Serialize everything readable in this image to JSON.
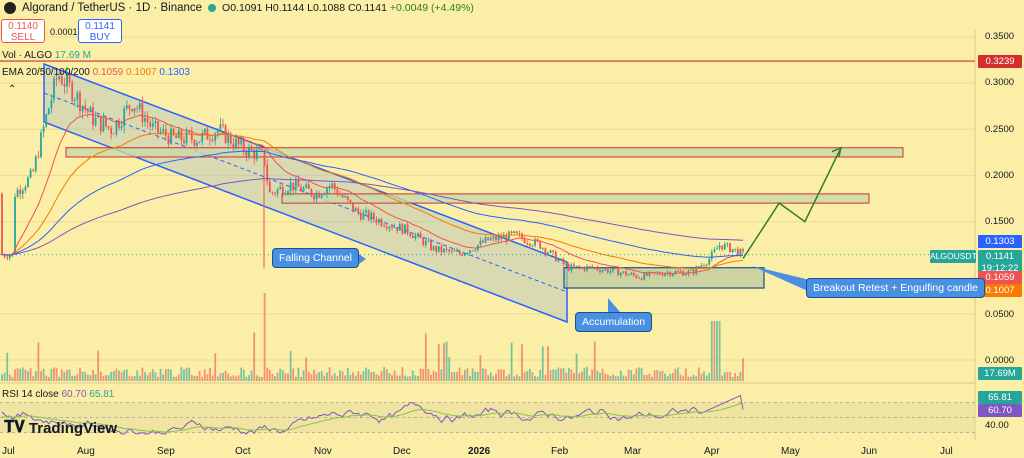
{
  "header": {
    "title": "Algorand / TetherUS · 1D · Binance",
    "open": "O0.1091",
    "high": "H0.1144",
    "low": "L0.1088",
    "close": "C0.1141",
    "change": "+0.0049 (+4.49%)"
  },
  "trade": {
    "sell_price": "0.1140",
    "sell_label": "SELL",
    "spread": "0.0001",
    "buy_price": "0.1141",
    "buy_label": "BUY"
  },
  "indicators": {
    "vol_label": "Vol · ALGO",
    "vol_value": "17.69 M",
    "ema_label": "EMA 20/50/100/200",
    "ema20": "0.1059",
    "ema50": "0.1007",
    "ema100": "0.1303",
    "rsi_label": "RSI 14 close",
    "rsi_value": "60.70",
    "rsi_ma": "65.81"
  },
  "price_axis": {
    "labels": [
      "0.3500",
      "0.3000",
      "0.2500",
      "0.2000",
      "0.1500",
      "0.0500",
      "0.0000",
      "40.00"
    ],
    "tags": {
      "top_line": "0.3239",
      "ema100": "0.1303",
      "symbol": "ALGOUSDT",
      "last": "0.1141",
      "countdown": "19:12:22",
      "ema20": "0.1059",
      "ema50": "0.1007",
      "volume": "17.69M",
      "rsi_ma": "65.81",
      "rsi": "60.70"
    }
  },
  "time_axis": [
    "Jul",
    "Aug",
    "Sep",
    "Oct",
    "Nov",
    "Dec",
    "2026",
    "Feb",
    "Mar",
    "Apr",
    "May",
    "Jun",
    "Jul"
  ],
  "annotations": {
    "falling_channel": "Falling Channel",
    "accumulation": "Accumulation",
    "breakout": "Breakout Retest + Engulfing candle"
  },
  "branding": {
    "name": "TradingView"
  },
  "colors": {
    "bg": "#fbeea6",
    "up": "#26a69a",
    "down": "#ef5350",
    "ema20": "#ef5350",
    "ema50": "#f57c00",
    "ema100": "#2962ff",
    "ema200": "#7e57c2",
    "channel": "#2962ff",
    "zone": "#c8d8a8",
    "resistance": "#d32f2f"
  },
  "chart_data": {
    "type": "candlestick",
    "symbol": "ALGOUSDT",
    "ylim": [
      0.0,
      0.36
    ],
    "x_range": [
      "2025-07",
      "2026-07"
    ],
    "ohlc_last": {
      "open": 0.1091,
      "high": 0.1144,
      "low": 0.1088,
      "close": 0.1141
    },
    "close_path": [
      [
        "2025-07-05",
        0.18
      ],
      [
        "2025-07-12",
        0.2
      ],
      [
        "2025-07-18",
        0.27
      ],
      [
        "2025-07-22",
        0.31
      ],
      [
        "2025-07-28",
        0.29
      ],
      [
        "2025-08-05",
        0.26
      ],
      [
        "2025-08-12",
        0.25
      ],
      [
        "2025-08-20",
        0.28
      ],
      [
        "2025-08-28",
        0.25
      ],
      [
        "2025-09-05",
        0.24
      ],
      [
        "2025-09-15",
        0.24
      ],
      [
        "2025-09-22",
        0.25
      ],
      [
        "2025-10-01",
        0.23
      ],
      [
        "2025-10-10",
        0.22
      ],
      [
        "2025-10-12",
        0.18
      ],
      [
        "2025-10-20",
        0.19
      ],
      [
        "2025-10-30",
        0.18
      ],
      [
        "2025-11-05",
        0.19
      ],
      [
        "2025-11-15",
        0.16
      ],
      [
        "2025-11-25",
        0.15
      ],
      [
        "2025-12-05",
        0.14
      ],
      [
        "2025-12-15",
        0.12
      ],
      [
        "2025-12-25",
        0.115
      ],
      [
        "2026-01-05",
        0.13
      ],
      [
        "2026-01-15",
        0.135
      ],
      [
        "2026-01-25",
        0.125
      ],
      [
        "2026-02-05",
        0.1
      ],
      [
        "2026-02-15",
        0.1
      ],
      [
        "2026-02-25",
        0.095
      ],
      [
        "2026-03-05",
        0.09
      ],
      [
        "2026-03-15",
        0.095
      ],
      [
        "2026-03-25",
        0.095
      ],
      [
        "2026-04-01",
        0.11
      ],
      [
        "2026-04-05",
        0.125
      ],
      [
        "2026-04-10",
        0.12
      ],
      [
        "2026-04-14",
        0.1141
      ]
    ],
    "levels": {
      "red_line": 0.3239,
      "zone_upper": [
        0.22,
        0.23
      ],
      "zone_middle": [
        0.17,
        0.18
      ],
      "accumulation_box": [
        0.078,
        0.1
      ]
    },
    "projection": [
      [
        "2026-04-14",
        0.11
      ],
      [
        "2026-04-28",
        0.17
      ],
      [
        "2026-05-08",
        0.15
      ],
      [
        "2026-05-22",
        0.23
      ]
    ],
    "ema": {
      "ema20": 0.1059,
      "ema50": 0.1007,
      "ema100": 0.1303
    },
    "rsi": {
      "value": 60.7,
      "ma": 65.81,
      "level": 40.0
    },
    "volume_last": "17.69M"
  }
}
